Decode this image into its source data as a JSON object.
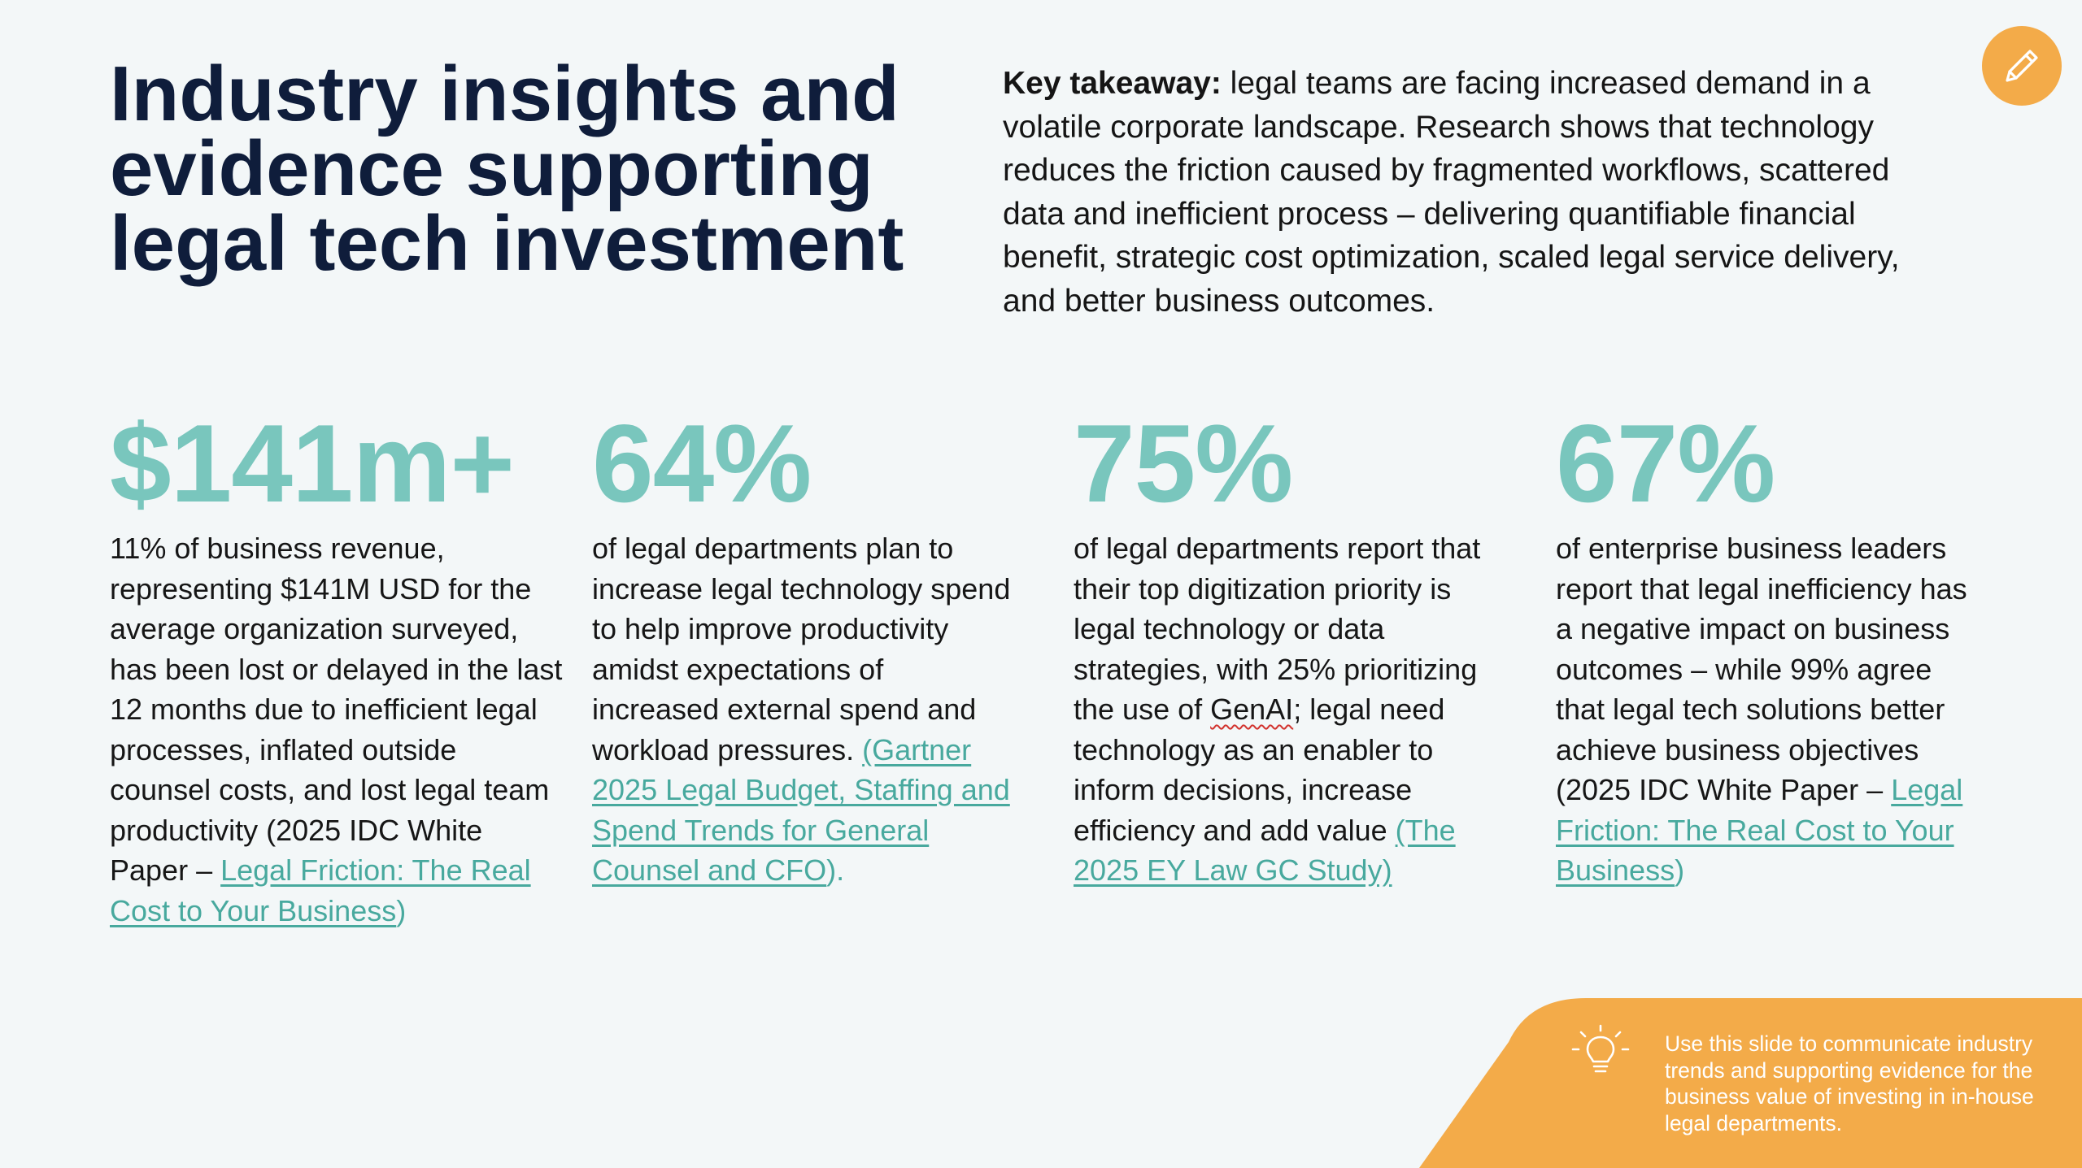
{
  "title": "Industry insights and evidence supporting legal tech investment",
  "takeaway": {
    "label": "Key takeaway:",
    "text": " legal teams are facing increased demand in a volatile corporate landscape. Research shows that technology reduces the friction caused by fragmented workflows, scattered data and inefficient process – delivering quantifiable financial benefit, strategic cost optimization, scaled legal service delivery, and better business outcomes."
  },
  "stats": [
    {
      "value": "$141m+",
      "text": "11% of business revenue, representing $141M USD for the average organization surveyed, has been lost or delayed in the last 12 months due to inefficient legal processes, inflated outside counsel costs, and lost legal team productivity (2025 IDC White Paper – ",
      "link": "Legal Friction: The Real Cost to Your Business",
      "after": ")"
    },
    {
      "value": "64%",
      "text": "of legal departments plan to increase legal technology spend to help improve productivity amidst expectations of increased external spend and workload pressures. ",
      "link": "(Gartner 2025 Legal Budget, Staffing and Spend Trends for General Counsel and CFO",
      "after": ")."
    },
    {
      "value": "75%",
      "text_a": "of legal departments report that their top digitization priority is legal technology or data strategies, with 25% prioritizing the use of ",
      "text_flag": "GenAI",
      "text_b": "; legal need technology as an enabler to inform decisions, increase efficiency and add value ",
      "link": "(The 2025 EY Law GC Study)"
    },
    {
      "value": "67%",
      "text": "of enterprise business leaders report that legal inefficiency has a negative impact on business outcomes – while 99% agree that legal tech solutions  better achieve business objectives (2025 IDC White Paper – ",
      "link": "Legal Friction: The Real Cost to Your Business",
      "after": ")"
    }
  ],
  "note": {
    "text": "Use this slide to communicate industry trends and supporting evidence for the business value of investing in in-house legal departments."
  },
  "colors": {
    "accent_teal": "#79c6bd",
    "link_teal": "#48a99e",
    "orange": "#f3ab49",
    "title_navy": "#0f1d3b"
  },
  "icons": {
    "edit": "pencil-icon",
    "note": "lightbulb-icon"
  }
}
